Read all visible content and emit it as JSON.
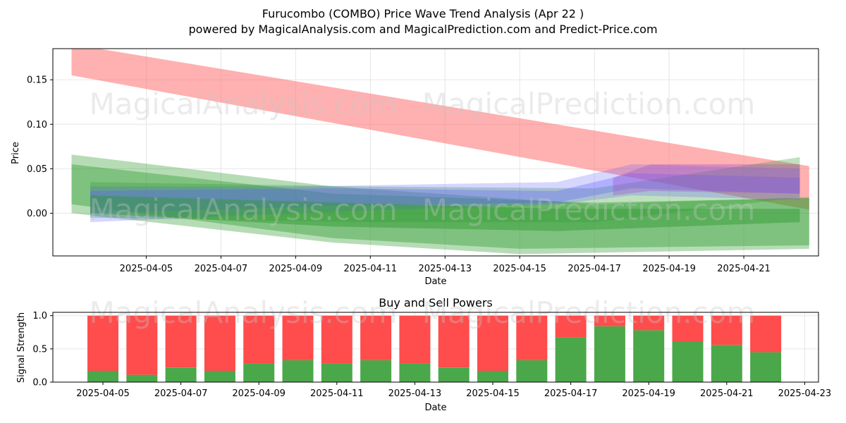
{
  "title": "Furucombo (COMBO) Price Wave Trend Analysis (Apr 22 )",
  "subtitle": "powered by MagicalAnalysis.com and MagicalPrediction.com and Predict-Price.com",
  "watermarks": [
    "MagicalAnalysis.com",
    "MagicalPrediction.com"
  ],
  "colors": {
    "red_band": "#ff6f6f",
    "green_band": "#2e9a2e",
    "blue_band": "#5a5aff",
    "purple_band": "#a050c8",
    "sell_bar": "#ff4c4c",
    "buy_bar": "#4aa84a"
  },
  "chart_data": [
    {
      "type": "area",
      "title": "",
      "xlabel": "Date",
      "ylabel": "Price",
      "x_ticks": [
        "2025-04-05",
        "2025-04-07",
        "2025-04-09",
        "2025-04-11",
        "2025-04-13",
        "2025-04-15",
        "2025-04-17",
        "2025-04-19",
        "2025-04-21"
      ],
      "y_ticks": [
        "0.00",
        "0.05",
        "0.10",
        "0.15"
      ],
      "xlim": [
        "2025-04-02T12:00",
        "2025-04-23T00:00"
      ],
      "ylim": [
        -0.048,
        0.185
      ],
      "grid": true,
      "series": [
        {
          "color": "red",
          "opacity": 0.55,
          "upper": [
            [
              "2025-04-03T00:00",
              0.19
            ],
            [
              "2025-04-22T18:00",
              0.053
            ]
          ],
          "lower": [
            [
              "2025-04-03T00:00",
              0.155
            ],
            [
              "2025-04-22T18:00",
              0.004
            ]
          ]
        },
        {
          "color": "green",
          "opacity": 0.35,
          "upper": [
            [
              "2025-04-03T00:00",
              0.066
            ],
            [
              "2025-04-10T00:00",
              0.03
            ],
            [
              "2025-04-17T00:00",
              0.01
            ],
            [
              "2025-04-22T18:00",
              0.018
            ]
          ],
          "lower": [
            [
              "2025-04-03T00:00",
              0.0
            ],
            [
              "2025-04-10T00:00",
              -0.033
            ],
            [
              "2025-04-15T00:00",
              -0.046
            ],
            [
              "2025-04-22T18:00",
              -0.04
            ]
          ]
        },
        {
          "color": "green",
          "opacity": 0.4,
          "upper": [
            [
              "2025-04-03T00:00",
              0.055
            ],
            [
              "2025-04-10T00:00",
              0.022
            ],
            [
              "2025-04-17T00:00",
              0.012
            ],
            [
              "2025-04-22T18:00",
              0.017
            ]
          ],
          "lower": [
            [
              "2025-04-03T00:00",
              0.01
            ],
            [
              "2025-04-10T00:00",
              -0.028
            ],
            [
              "2025-04-15T00:00",
              -0.04
            ],
            [
              "2025-04-22T18:00",
              -0.036
            ]
          ]
        },
        {
          "color": "green",
          "opacity": 0.3,
          "upper": [
            [
              "2025-04-03T12:00",
              0.035
            ],
            [
              "2025-04-11T00:00",
              0.03
            ],
            [
              "2025-04-17T00:00",
              0.028
            ],
            [
              "2025-04-22T12:00",
              0.063
            ]
          ],
          "lower": [
            [
              "2025-04-03T12:00",
              -0.005
            ],
            [
              "2025-04-11T00:00",
              -0.01
            ],
            [
              "2025-04-17T00:00",
              -0.01
            ],
            [
              "2025-04-22T12:00",
              0.018
            ]
          ]
        },
        {
          "color": "blue",
          "opacity": 0.25,
          "upper": [
            [
              "2025-04-03T12:00",
              0.03
            ],
            [
              "2025-04-09T00:00",
              0.03
            ],
            [
              "2025-04-16T00:00",
              0.035
            ],
            [
              "2025-04-18T00:00",
              0.055
            ],
            [
              "2025-04-22T12:00",
              0.05
            ]
          ],
          "lower": [
            [
              "2025-04-03T12:00",
              -0.01
            ],
            [
              "2025-04-09T00:00",
              0.0
            ],
            [
              "2025-04-16T00:00",
              0.01
            ],
            [
              "2025-04-18T00:00",
              0.02
            ],
            [
              "2025-04-22T12:00",
              0.015
            ]
          ]
        },
        {
          "color": "blue",
          "opacity": 0.3,
          "upper": [
            [
              "2025-04-03T12:00",
              0.025
            ],
            [
              "2025-04-10T00:00",
              0.028
            ],
            [
              "2025-04-16T00:00",
              0.025
            ],
            [
              "2025-04-18T00:00",
              0.045
            ],
            [
              "2025-04-22T12:00",
              0.04
            ]
          ],
          "lower": [
            [
              "2025-04-03T12:00",
              0.0
            ],
            [
              "2025-04-10T00:00",
              0.008
            ],
            [
              "2025-04-16T00:00",
              0.012
            ],
            [
              "2025-04-18T00:00",
              0.028
            ],
            [
              "2025-04-22T12:00",
              0.022
            ]
          ]
        },
        {
          "color": "purple",
          "opacity": 0.35,
          "upper": [
            [
              "2025-04-17T12:00",
              0.04
            ],
            [
              "2025-04-18T12:00",
              0.055
            ],
            [
              "2025-04-22T12:00",
              0.055
            ]
          ],
          "lower": [
            [
              "2025-04-17T12:00",
              0.02
            ],
            [
              "2025-04-18T12:00",
              0.025
            ],
            [
              "2025-04-22T12:00",
              0.022
            ]
          ]
        },
        {
          "color": "green",
          "opacity": 0.45,
          "upper": [
            [
              "2025-04-03T12:00",
              0.02
            ],
            [
              "2025-04-10T00:00",
              0.012
            ],
            [
              "2025-04-16T00:00",
              0.005
            ],
            [
              "2025-04-22T12:00",
              0.005
            ]
          ],
          "lower": [
            [
              "2025-04-03T12:00",
              0.0
            ],
            [
              "2025-04-10T00:00",
              -0.015
            ],
            [
              "2025-04-16T00:00",
              -0.02
            ],
            [
              "2025-04-22T12:00",
              -0.01
            ]
          ]
        }
      ]
    },
    {
      "type": "bar",
      "title": "Buy and Sell Powers",
      "xlabel": "Date",
      "ylabel": "Signal Strength",
      "x_ticks": [
        "2025-04-05",
        "2025-04-07",
        "2025-04-09",
        "2025-04-11",
        "2025-04-13",
        "2025-04-15",
        "2025-04-17",
        "2025-04-19",
        "2025-04-21",
        "2025-04-23"
      ],
      "y_ticks": [
        "0.0",
        "0.5",
        "1.0"
      ],
      "ylim": [
        0,
        1.05
      ],
      "grid": true,
      "categories": [
        "2025-04-05",
        "2025-04-06",
        "2025-04-07",
        "2025-04-08",
        "2025-04-09",
        "2025-04-10",
        "2025-04-11",
        "2025-04-12",
        "2025-04-13",
        "2025-04-14",
        "2025-04-15",
        "2025-04-16",
        "2025-04-17",
        "2025-04-18",
        "2025-04-19",
        "2025-04-20",
        "2025-04-21",
        "2025-04-22"
      ],
      "series": [
        {
          "color": "green",
          "values": [
            0.17,
            0.11,
            0.22,
            0.17,
            0.28,
            0.33,
            0.28,
            0.33,
            0.28,
            0.22,
            0.17,
            0.33,
            0.67,
            0.84,
            0.78,
            0.61,
            0.56,
            0.45
          ]
        },
        {
          "color": "red",
          "values": [
            0.83,
            0.89,
            0.78,
            0.83,
            0.72,
            0.67,
            0.72,
            0.67,
            0.72,
            0.78,
            0.83,
            0.67,
            0.33,
            0.16,
            0.22,
            0.39,
            0.44,
            0.55
          ]
        }
      ]
    }
  ]
}
